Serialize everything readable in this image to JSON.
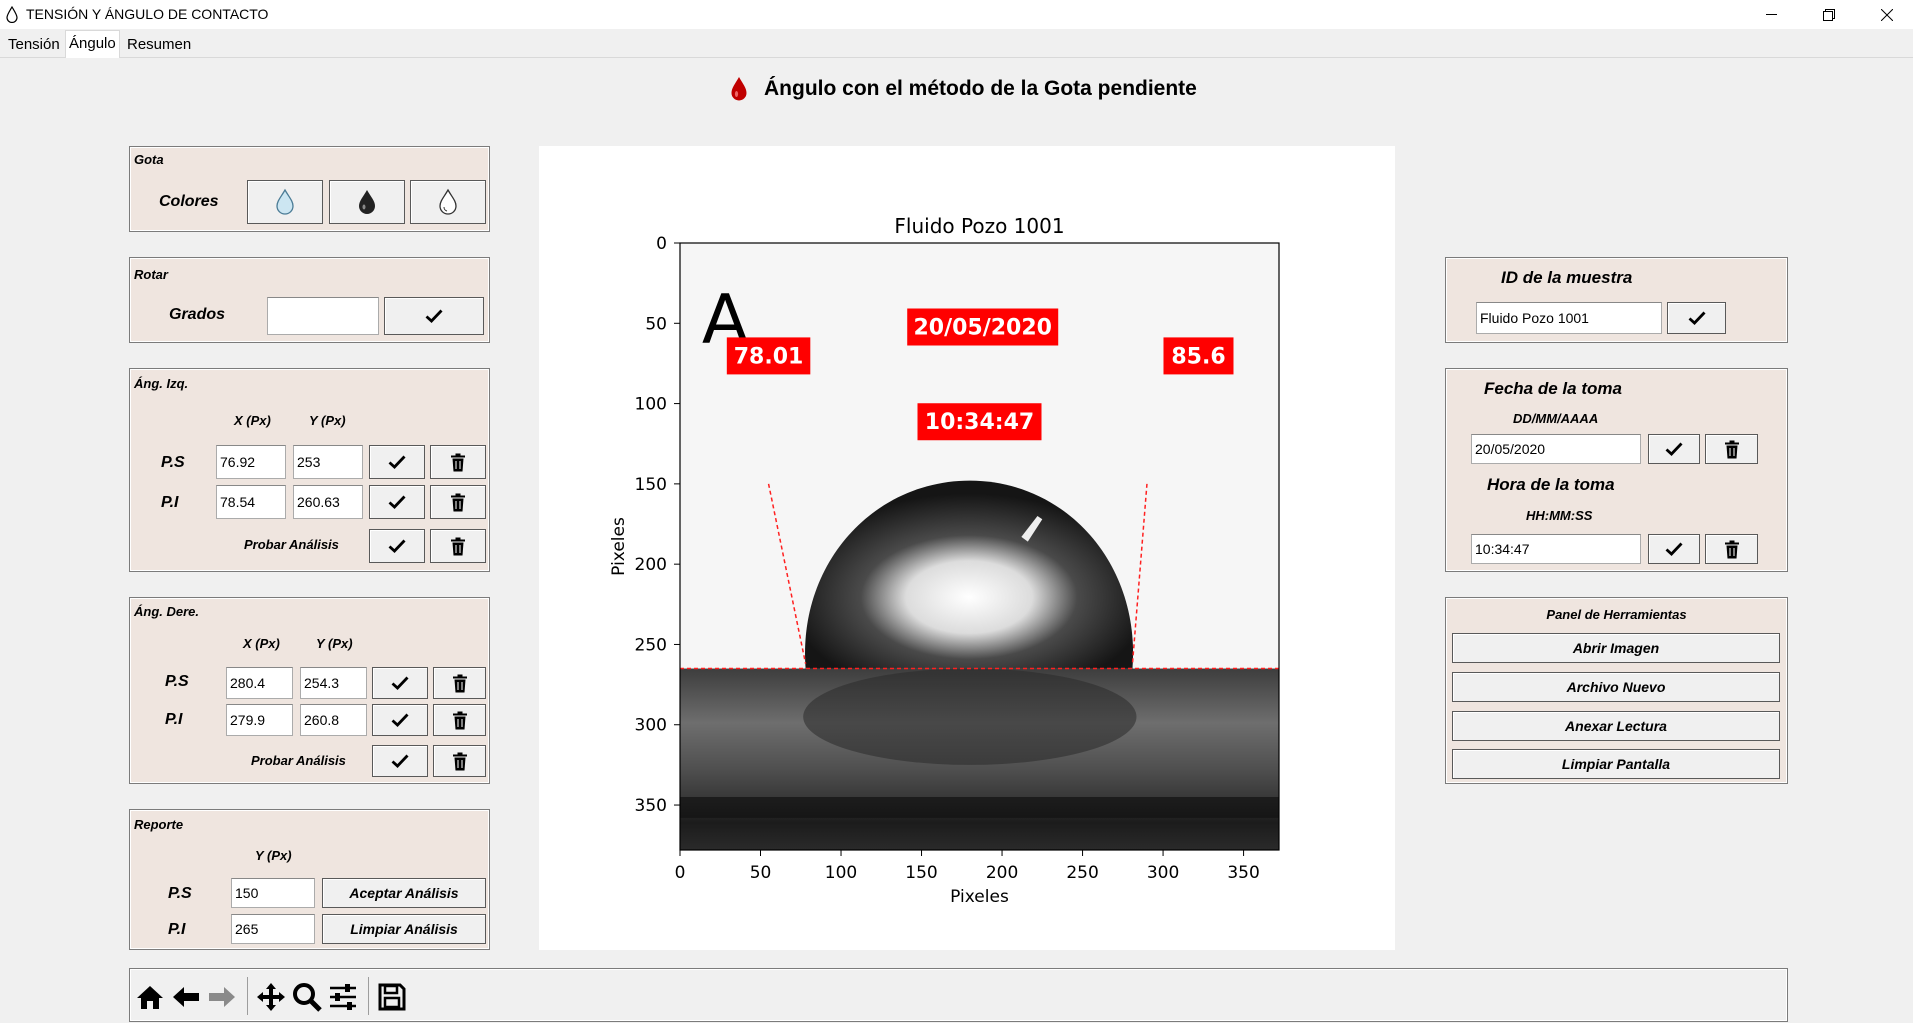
{
  "window": {
    "title": "TENSIÓN Y ÁNGULO DE CONTACTO",
    "icon": "drop-outline-icon",
    "controls": [
      "minimize-icon",
      "restore-icon",
      "close-icon"
    ]
  },
  "tabs": [
    {
      "label": "Tensión",
      "active": false
    },
    {
      "label": "Ángulo",
      "active": true
    },
    {
      "label": "Resumen",
      "active": false
    }
  ],
  "heading": {
    "icon": "red-drop-icon",
    "text": "Ángulo con el método de la Gota pendiente",
    "icon_color": "#c00000"
  },
  "gota": {
    "title": "Gota",
    "colors_label": "Colores",
    "color_buttons": [
      "light-blue-drop-icon",
      "dark-drop-icon",
      "outline-drop-icon"
    ]
  },
  "rotar": {
    "title": "Rotar",
    "grados_label": "Grados",
    "grados_value": ""
  },
  "ang_izq": {
    "title": "Áng. Izq.",
    "col_x": "X (Px)",
    "col_y": "Y (Px)",
    "ps_label": "P.S",
    "ps_x": "76.92",
    "ps_y": "253",
    "pi_label": "P.I",
    "pi_x": "78.54",
    "pi_y": "260.63",
    "probar_label": "Probar Análisis"
  },
  "ang_dere": {
    "title": "Áng. Dere.",
    "col_x": "X (Px)",
    "col_y": "Y (Px)",
    "ps_label": "P.S",
    "ps_x": "280.4",
    "ps_y": "254.3",
    "pi_label": "P.I",
    "pi_x": "279.9",
    "pi_y": "260.8",
    "probar_label": "Probar Análisis"
  },
  "reporte": {
    "title": "Reporte",
    "col_y": "Y (Px)",
    "ps_label": "P.S",
    "ps_y": "150",
    "pi_label": "P.I",
    "pi_y": "265",
    "aceptar_label": "Aceptar Análisis",
    "limpiar_label": "Limpiar Análisis"
  },
  "muestra": {
    "title": "ID de la muestra",
    "value": "Fluido Pozo 1001"
  },
  "fecha": {
    "title": "Fecha de la toma",
    "format": "DD/MM/AAAA",
    "value": "20/05/2020",
    "hora_title": "Hora de la toma",
    "hora_format": "HH:MM:SS",
    "hora_value": "10:34:47"
  },
  "herramientas": {
    "title": "Panel de Herramientas",
    "buttons": [
      "Abrir Imagen",
      "Archivo Nuevo",
      "Anexar Lectura",
      "Limpiar Pantalla"
    ]
  },
  "chart_data": {
    "type": "image",
    "title": "Fluido Pozo 1001",
    "xlabel": "Pixeles",
    "ylabel": "Pixeles",
    "xlim": [
      0,
      372
    ],
    "ylim": [
      0,
      378
    ],
    "y_inverted": true,
    "x_ticks": [
      "0",
      "50",
      "100",
      "150",
      "200",
      "250",
      "300",
      "350"
    ],
    "y_ticks": [
      "0",
      "50",
      "100",
      "150",
      "200",
      "250",
      "300",
      "350"
    ],
    "overlay_letter": "A",
    "labels": {
      "left_angle": "78.01",
      "right_angle": "85.6",
      "date": "20/05/2020",
      "time": "10:34:47"
    },
    "label_color": "#ff0000",
    "baseline_y": 265,
    "tangent_left": [
      [
        55,
        150
      ],
      [
        78,
        262
      ]
    ],
    "tangent_right": [
      [
        290,
        150
      ],
      [
        281,
        262
      ]
    ]
  },
  "toolbar": {
    "tools": [
      "home-icon",
      "back-arrow-icon",
      "forward-arrow-icon",
      "pan-icon",
      "zoom-icon",
      "configure-subplots-icon",
      "save-icon"
    ]
  }
}
